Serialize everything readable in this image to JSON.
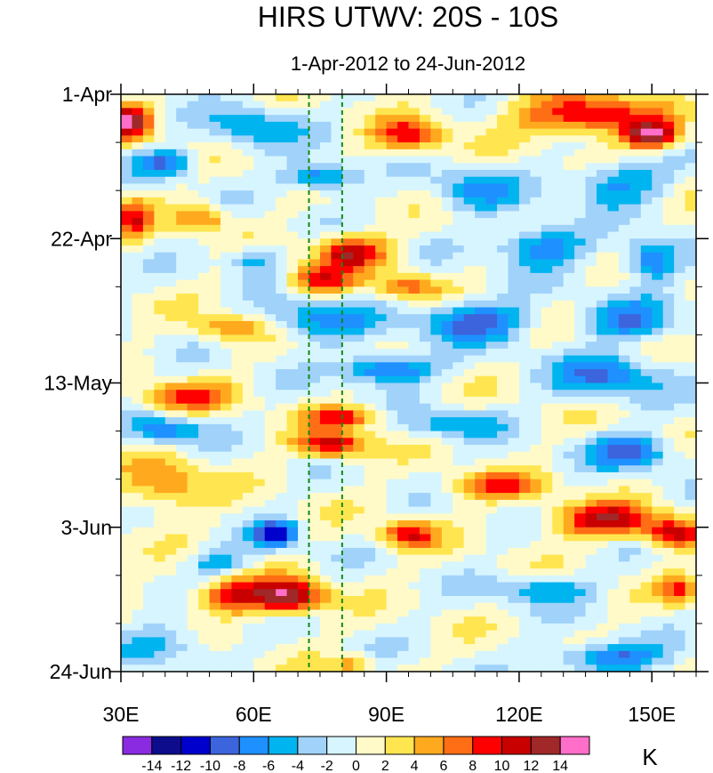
{
  "chart_data": {
    "type": "heatmap",
    "title": "HIRS UTWV: 20S - 10S",
    "subtitle": "1-Apr-2012 to 24-Jun-2012",
    "x_axis": {
      "range": [
        30,
        160
      ],
      "ticks": [
        {
          "value": 30,
          "label": "30E"
        },
        {
          "value": 60,
          "label": "60E"
        },
        {
          "value": 90,
          "label": "90E"
        },
        {
          "value": 120,
          "label": "120E"
        },
        {
          "value": 150,
          "label": "150E"
        }
      ],
      "minor_step": 5
    },
    "y_axis": {
      "range_days": [
        0,
        84
      ],
      "direction": "downward",
      "ticks": [
        {
          "day": 0,
          "label": "1-Apr"
        },
        {
          "day": 21,
          "label": "22-Apr"
        },
        {
          "day": 42,
          "label": "13-May"
        },
        {
          "day": 63,
          "label": "3-Jun"
        },
        {
          "day": 84,
          "label": "24-Jun"
        }
      ],
      "minor_step_days": 7
    },
    "reference_lines": [
      {
        "lon": 72.5,
        "style": "dashed",
        "color": "#118811"
      },
      {
        "lon": 80,
        "style": "dashed",
        "color": "#118811"
      }
    ],
    "colorbar": {
      "unit": "K",
      "levels": [
        -14,
        -12,
        -10,
        -8,
        -6,
        -4,
        -2,
        0,
        2,
        4,
        6,
        8,
        10,
        12,
        14
      ],
      "labels": [
        "-14",
        "-12",
        "-10",
        "-8",
        "-6",
        "-4",
        "-2",
        "0",
        "2",
        "4",
        "6",
        "8",
        "10",
        "12",
        "14"
      ],
      "colors": [
        "#8a2be2",
        "#0c0c8c",
        "#0000cd",
        "#3c64dc",
        "#1e90ff",
        "#00b4f0",
        "#a0d2fa",
        "#d7f5ff",
        "#fffac8",
        "#ffe650",
        "#ffaa1e",
        "#ff6e14",
        "#ff0000",
        "#c80000",
        "#a02828",
        "#ff6ec8"
      ]
    },
    "anomaly_features": [
      {
        "lon": 32,
        "day": 4,
        "amp": 13,
        "rlon": 5,
        "rday": 2.5
      },
      {
        "lon": 40,
        "day": 10,
        "amp": -8,
        "rlon": 6,
        "rday": 2
      },
      {
        "lon": 60,
        "day": 5,
        "amp": -6,
        "rlon": 10,
        "rday": 3
      },
      {
        "lon": 95,
        "day": 6,
        "amp": 9,
        "rlon": 8,
        "rday": 2.5
      },
      {
        "lon": 135,
        "day": 3,
        "amp": 11,
        "rlon": 15,
        "rday": 3
      },
      {
        "lon": 150,
        "day": 6,
        "amp": 14,
        "rlon": 6,
        "rday": 2
      },
      {
        "lon": 142,
        "day": 13,
        "amp": -7,
        "rlon": 10,
        "rday": 3
      },
      {
        "lon": 75,
        "day": 12,
        "amp": -9,
        "rlon": 8,
        "rday": 2
      },
      {
        "lon": 110,
        "day": 14,
        "amp": -6,
        "rlon": 10,
        "rday": 3
      },
      {
        "lon": 48,
        "day": 18,
        "amp": 7,
        "rlon": 6,
        "rday": 2
      },
      {
        "lon": 33,
        "day": 18,
        "amp": 8,
        "rlon": 4,
        "rday": 3
      },
      {
        "lon": 82,
        "day": 23,
        "amp": 11,
        "rlon": 8,
        "rday": 2.5
      },
      {
        "lon": 75,
        "day": 27,
        "amp": 9,
        "rlon": 7,
        "rday": 2
      },
      {
        "lon": 125,
        "day": 22,
        "amp": -8,
        "rlon": 10,
        "rday": 3
      },
      {
        "lon": 150,
        "day": 24,
        "amp": -9,
        "rlon": 6,
        "rday": 3
      },
      {
        "lon": 60,
        "day": 24,
        "amp": -6,
        "rlon": 6,
        "rday": 2
      },
      {
        "lon": 95,
        "day": 28,
        "amp": 7,
        "rlon": 7,
        "rday": 2
      },
      {
        "lon": 75,
        "day": 33,
        "amp": -7,
        "rlon": 12,
        "rday": 3
      },
      {
        "lon": 110,
        "day": 33,
        "amp": -9,
        "rlon": 12,
        "rday": 3
      },
      {
        "lon": 55,
        "day": 34,
        "amp": 6,
        "rlon": 8,
        "rday": 2
      },
      {
        "lon": 145,
        "day": 33,
        "amp": -7,
        "rlon": 10,
        "rday": 3
      },
      {
        "lon": 90,
        "day": 40,
        "amp": -10,
        "rlon": 10,
        "rday": 2
      },
      {
        "lon": 140,
        "day": 41,
        "amp": -8,
        "rlon": 12,
        "rday": 3
      },
      {
        "lon": 45,
        "day": 44,
        "amp": 8,
        "rlon": 10,
        "rday": 2
      },
      {
        "lon": 40,
        "day": 49,
        "amp": -8,
        "rlon": 8,
        "rday": 2
      },
      {
        "lon": 80,
        "day": 47,
        "amp": 9,
        "rlon": 8,
        "rday": 1.5
      },
      {
        "lon": 78,
        "day": 51,
        "amp": 11,
        "rlon": 8,
        "rday": 2
      },
      {
        "lon": 105,
        "day": 48,
        "amp": -6,
        "rlon": 10,
        "rday": 2
      },
      {
        "lon": 145,
        "day": 52,
        "amp": -8,
        "rlon": 10,
        "rday": 2.5
      },
      {
        "lon": 40,
        "day": 57,
        "amp": 6,
        "rlon": 10,
        "rday": 4
      },
      {
        "lon": 115,
        "day": 57,
        "amp": 8,
        "rlon": 10,
        "rday": 2
      },
      {
        "lon": 140,
        "day": 62,
        "amp": 11,
        "rlon": 12,
        "rday": 2.5
      },
      {
        "lon": 155,
        "day": 64,
        "amp": 10,
        "rlon": 6,
        "rday": 2
      },
      {
        "lon": 95,
        "day": 64,
        "amp": 10,
        "rlon": 6,
        "rday": 2
      },
      {
        "lon": 65,
        "day": 64,
        "amp": -11,
        "rlon": 5,
        "rday": 2
      },
      {
        "lon": 52,
        "day": 68,
        "amp": -6,
        "rlon": 6,
        "rday": 2
      },
      {
        "lon": 68,
        "day": 73,
        "amp": 14,
        "rlon": 8,
        "rday": 2.5
      },
      {
        "lon": 55,
        "day": 73,
        "amp": 9,
        "rlon": 8,
        "rday": 2.5
      },
      {
        "lon": 156,
        "day": 72,
        "amp": 9,
        "rlon": 4,
        "rday": 2
      },
      {
        "lon": 125,
        "day": 72,
        "amp": -6,
        "rlon": 12,
        "rday": 2
      },
      {
        "lon": 40,
        "day": 80,
        "amp": -5,
        "rlon": 10,
        "rday": 3
      },
      {
        "lon": 140,
        "day": 82,
        "amp": -9,
        "rlon": 12,
        "rday": 2
      },
      {
        "lon": 82,
        "day": 83,
        "amp": 6,
        "rlon": 4,
        "rday": 1.5
      }
    ]
  }
}
